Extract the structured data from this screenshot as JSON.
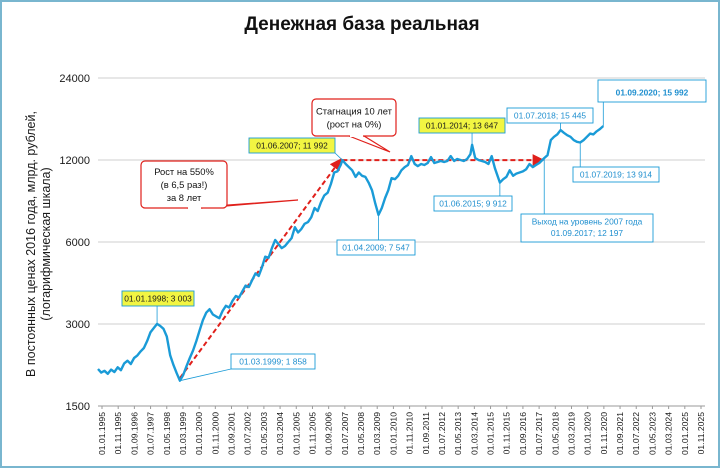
{
  "chart_data": {
    "type": "line",
    "title": "Денежная база реальная",
    "ylabel_lines": [
      "В постоянных ценах 2016 года, млрд. рублей,",
      "(логарифмическая шкала)"
    ],
    "y_scale": "log",
    "ylim": [
      1500,
      24000
    ],
    "y_ticks": [
      1500,
      3000,
      6000,
      12000,
      24000
    ],
    "y_tick_labels": [
      "1500",
      "3000",
      "6000",
      "12000",
      "24000"
    ],
    "grid_horizontal": true,
    "x_tick_labels": [
      "01.01.1995",
      "01.11.1995",
      "01.09.1996",
      "01.07.1997",
      "01.05.1998",
      "01.03.1999",
      "01.01.2000",
      "01.11.2000",
      "01.09.2001",
      "01.07.2002",
      "01.05.2003",
      "01.03.2004",
      "01.01.2005",
      "01.11.2005",
      "01.09.2006",
      "01.07.2007",
      "01.05.2008",
      "01.03.2009",
      "01.01.2010",
      "01.11.2010",
      "01.09.2011",
      "01.07.2012",
      "01.05.2013",
      "01.03.2014",
      "01.01.2015",
      "01.11.2015",
      "01.09.2016",
      "01.07.2017",
      "01.05.2018",
      "01.03.2019",
      "01.01.2020",
      "01.11.2020",
      "01.09.2021",
      "01.07.2022",
      "01.05.2023",
      "01.03.2024",
      "01.01.2025",
      "01.11.2025"
    ],
    "xlim": [
      "1995-01-01",
      "2025-11-01"
    ],
    "series": [
      {
        "color": "#1a9bd7",
        "points": [
          [
            "1995-01-01",
            2050
          ],
          [
            "1995-03-01",
            1990
          ],
          [
            "1995-05-01",
            2020
          ],
          [
            "1995-07-01",
            1970
          ],
          [
            "1995-09-01",
            2040
          ],
          [
            "1995-11-01",
            2000
          ],
          [
            "1996-01-01",
            2080
          ],
          [
            "1996-03-01",
            2030
          ],
          [
            "1996-05-01",
            2150
          ],
          [
            "1996-07-01",
            2200
          ],
          [
            "1996-09-01",
            2140
          ],
          [
            "1996-11-01",
            2250
          ],
          [
            "1997-01-01",
            2300
          ],
          [
            "1997-03-01",
            2380
          ],
          [
            "1997-05-01",
            2450
          ],
          [
            "1997-07-01",
            2600
          ],
          [
            "1997-09-01",
            2800
          ],
          [
            "1997-11-01",
            2900
          ],
          [
            "1998-01-01",
            3003
          ],
          [
            "1998-03-01",
            2950
          ],
          [
            "1998-05-01",
            2880
          ],
          [
            "1998-07-01",
            2700
          ],
          [
            "1998-09-01",
            2300
          ],
          [
            "1998-11-01",
            2120
          ],
          [
            "1999-01-01",
            1980
          ],
          [
            "1999-03-01",
            1858
          ],
          [
            "1999-05-01",
            1950
          ],
          [
            "1999-07-01",
            2100
          ],
          [
            "1999-09-01",
            2250
          ],
          [
            "1999-11-01",
            2400
          ],
          [
            "2000-01-01",
            2600
          ],
          [
            "2000-03-01",
            2850
          ],
          [
            "2000-05-01",
            3100
          ],
          [
            "2000-07-01",
            3300
          ],
          [
            "2000-09-01",
            3400
          ],
          [
            "2000-11-01",
            3250
          ],
          [
            "2001-01-01",
            3200
          ],
          [
            "2001-03-01",
            3150
          ],
          [
            "2001-05-01",
            3350
          ],
          [
            "2001-07-01",
            3500
          ],
          [
            "2001-09-01",
            3450
          ],
          [
            "2001-11-01",
            3650
          ],
          [
            "2002-01-01",
            3800
          ],
          [
            "2002-03-01",
            3750
          ],
          [
            "2002-05-01",
            3950
          ],
          [
            "2002-07-01",
            4150
          ],
          [
            "2002-09-01",
            4100
          ],
          [
            "2002-11-01",
            4350
          ],
          [
            "2003-01-01",
            4600
          ],
          [
            "2003-03-01",
            4500
          ],
          [
            "2003-05-01",
            4850
          ],
          [
            "2003-07-01",
            5300
          ],
          [
            "2003-09-01",
            5250
          ],
          [
            "2003-11-01",
            5700
          ],
          [
            "2004-01-01",
            6100
          ],
          [
            "2004-03-01",
            5900
          ],
          [
            "2004-05-01",
            5700
          ],
          [
            "2004-07-01",
            5800
          ],
          [
            "2004-09-01",
            6000
          ],
          [
            "2004-11-01",
            6200
          ],
          [
            "2005-01-01",
            6800
          ],
          [
            "2005-03-01",
            6500
          ],
          [
            "2005-05-01",
            6700
          ],
          [
            "2005-07-01",
            7000
          ],
          [
            "2005-09-01",
            7100
          ],
          [
            "2005-11-01",
            7400
          ],
          [
            "2006-01-01",
            8000
          ],
          [
            "2006-03-01",
            7800
          ],
          [
            "2006-05-01",
            8400
          ],
          [
            "2006-07-01",
            8900
          ],
          [
            "2006-09-01",
            9100
          ],
          [
            "2006-11-01",
            9800
          ],
          [
            "2007-01-01",
            10800
          ],
          [
            "2007-03-01",
            10900
          ],
          [
            "2007-05-01",
            11500
          ],
          [
            "2007-06-01",
            11992
          ],
          [
            "2007-08-01",
            11600
          ],
          [
            "2007-10-01",
            11300
          ],
          [
            "2007-12-01",
            11000
          ],
          [
            "2008-02-01",
            10400
          ],
          [
            "2008-04-01",
            10800
          ],
          [
            "2008-06-01",
            10500
          ],
          [
            "2008-08-01",
            10400
          ],
          [
            "2008-10-01",
            9900
          ],
          [
            "2008-12-01",
            9300
          ],
          [
            "2009-02-01",
            8300
          ],
          [
            "2009-04-01",
            7547
          ],
          [
            "2009-06-01",
            8000
          ],
          [
            "2009-08-01",
            8700
          ],
          [
            "2009-10-01",
            9300
          ],
          [
            "2009-12-01",
            10300
          ],
          [
            "2010-02-01",
            10200
          ],
          [
            "2010-04-01",
            10500
          ],
          [
            "2010-06-01",
            11000
          ],
          [
            "2010-08-01",
            11300
          ],
          [
            "2010-10-01",
            11500
          ],
          [
            "2010-12-01",
            12400
          ],
          [
            "2011-02-01",
            11600
          ],
          [
            "2011-04-01",
            11400
          ],
          [
            "2011-06-01",
            11600
          ],
          [
            "2011-08-01",
            11500
          ],
          [
            "2011-10-01",
            11700
          ],
          [
            "2011-12-01",
            12300
          ],
          [
            "2012-02-01",
            11700
          ],
          [
            "2012-04-01",
            11800
          ],
          [
            "2012-06-01",
            11900
          ],
          [
            "2012-08-01",
            11800
          ],
          [
            "2012-10-01",
            11900
          ],
          [
            "2012-12-01",
            12400
          ],
          [
            "2013-02-01",
            11900
          ],
          [
            "2013-04-01",
            12100
          ],
          [
            "2013-06-01",
            12000
          ],
          [
            "2013-08-01",
            11900
          ],
          [
            "2013-10-01",
            12100
          ],
          [
            "2013-12-01",
            12600
          ],
          [
            "2014-01-01",
            13647
          ],
          [
            "2014-03-01",
            12200
          ],
          [
            "2014-05-01",
            12000
          ],
          [
            "2014-07-01",
            11900
          ],
          [
            "2014-09-01",
            11800
          ],
          [
            "2014-11-01",
            11600
          ],
          [
            "2015-01-01",
            12400
          ],
          [
            "2015-03-01",
            11200
          ],
          [
            "2015-06-01",
            9912
          ],
          [
            "2015-08-01",
            10200
          ],
          [
            "2015-10-01",
            10400
          ],
          [
            "2015-12-01",
            11000
          ],
          [
            "2016-02-01",
            10500
          ],
          [
            "2016-04-01",
            10700
          ],
          [
            "2016-06-01",
            10800
          ],
          [
            "2016-08-01",
            10900
          ],
          [
            "2016-10-01",
            11100
          ],
          [
            "2016-12-01",
            11600
          ],
          [
            "2017-02-01",
            11300
          ],
          [
            "2017-04-01",
            11500
          ],
          [
            "2017-06-01",
            11700
          ],
          [
            "2017-09-01",
            12197
          ],
          [
            "2017-11-01",
            12500
          ],
          [
            "2018-01-01",
            14200
          ],
          [
            "2018-03-01",
            14600
          ],
          [
            "2018-05-01",
            14900
          ],
          [
            "2018-07-01",
            15445
          ],
          [
            "2018-09-01",
            15100
          ],
          [
            "2018-11-01",
            14800
          ],
          [
            "2019-01-01",
            14600
          ],
          [
            "2019-03-01",
            14200
          ],
          [
            "2019-05-01",
            14000
          ],
          [
            "2019-07-01",
            13914
          ],
          [
            "2019-09-01",
            14200
          ],
          [
            "2019-11-01",
            14600
          ],
          [
            "2020-01-01",
            15000
          ],
          [
            "2020-03-01",
            14900
          ],
          [
            "2020-05-01",
            15300
          ],
          [
            "2020-07-01",
            15600
          ],
          [
            "2020-09-01",
            15992
          ]
        ]
      }
    ],
    "trend_lines": [
      {
        "from": [
          "1999-03-01",
          1900
        ],
        "to": [
          "2007-06-01",
          11992
        ],
        "color": "#e0201b",
        "style": "dashed",
        "arrow": true
      },
      {
        "from": [
          "2007-06-01",
          11992
        ],
        "to": [
          "2017-09-01",
          11992
        ],
        "color": "#e0201b",
        "style": "dashed",
        "arrow": true
      }
    ],
    "point_labels": [
      {
        "point": [
          "1998-01-01",
          3003
        ],
        "text": "01.01.1998;  3 003",
        "highlight": true
      },
      {
        "point": [
          "1999-03-01",
          1858
        ],
        "text": "01.03.1999;  1 858",
        "highlight": false
      },
      {
        "point": [
          "2007-06-01",
          11992
        ],
        "text": "01.06.2007;  11 992",
        "highlight": true
      },
      {
        "point": [
          "2009-04-01",
          7547
        ],
        "text": "01.04.2009;  7 547",
        "highlight": false
      },
      {
        "point": [
          "2014-01-01",
          13647
        ],
        "text": "01.01.2014;  13 647",
        "highlight": true
      },
      {
        "point": [
          "2015-06-01",
          9912
        ],
        "text": "01.06.2015;  9 912",
        "highlight": false
      },
      {
        "point": [
          "2018-07-01",
          15445
        ],
        "text": "01.07.2018;  15 445",
        "highlight": false
      },
      {
        "point": [
          "2019-07-01",
          13914
        ],
        "text": "01.07.2019;  13 914",
        "highlight": false
      },
      {
        "point": [
          "2017-09-01",
          12197
        ],
        "text_lines": [
          "Выход на уровень 2007 года",
          "01.09.2017;  12 197"
        ],
        "highlight": false
      },
      {
        "point": [
          "2020-09-01",
          15992
        ],
        "text": "01.09.2020;  15 992",
        "highlight": false,
        "large": true
      }
    ],
    "callouts": [
      {
        "text_lines": [
          "Рост на 550%",
          "(в 6,5 раз!)",
          "за 8 лет"
        ],
        "border_color": "#e0201b"
      },
      {
        "text_lines": [
          "Стагнация 10 лет",
          "(рост на 0%)"
        ],
        "border_color": "#e0201b"
      }
    ],
    "colors": {
      "line": "#1a9bd7",
      "trend": "#e0201b",
      "highlight_fill": "#f2f542",
      "label_text": "#1f8fcf"
    }
  }
}
